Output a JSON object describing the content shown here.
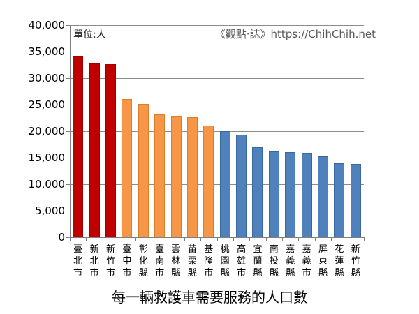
{
  "chart": {
    "unit_label": "單位:人",
    "watermark": "《觀點·誌》https://ChihChih.net",
    "title": "每一輛救護車需要服務的人口數"
  },
  "chart_data": {
    "type": "bar",
    "title": "每一輛救護車需要服務的人口數",
    "unit_label": "單位:人",
    "watermark": "《觀點·誌》https://ChihChih.net",
    "categories": [
      "臺北市",
      "新北市",
      "新竹市",
      "臺中市",
      "彰化縣",
      "臺南市",
      "雲林縣",
      "苗栗縣",
      "基隆市",
      "桃園縣",
      "高雄市",
      "宜蘭縣",
      "南投縣",
      "嘉義縣",
      "嘉義市",
      "屏東縣",
      "花蓮縣",
      "新竹縣"
    ],
    "values": [
      34200,
      32800,
      32600,
      26100,
      25100,
      23200,
      22900,
      22600,
      21000,
      20000,
      19300,
      17000,
      16200,
      16100,
      15900,
      15300,
      14000,
      13800
    ],
    "bar_color_groups": [
      "red",
      "red",
      "red",
      "orange",
      "orange",
      "orange",
      "orange",
      "orange",
      "orange",
      "blue",
      "blue",
      "blue",
      "blue",
      "blue",
      "blue",
      "blue",
      "blue",
      "blue"
    ],
    "group_fill_colors": {
      "red": "#C00000",
      "orange": "#F79646",
      "blue": "#4F81BD"
    },
    "group_border_colors": {
      "red": "#9E0000",
      "orange": "#DD7E2B",
      "blue": "#3A679C"
    },
    "xlabel": "",
    "ylabel": "",
    "ylim": [
      0,
      40000
    ],
    "ytick_interval": 5000,
    "ytick_labels": [
      "0",
      "5,000",
      "10,000",
      "15,000",
      "20,000",
      "25,000",
      "30,000",
      "35,000",
      "40,000"
    ],
    "grid": true,
    "gridline_color": "#8c8c8c",
    "legend": "none",
    "background": "#ffffff"
  }
}
